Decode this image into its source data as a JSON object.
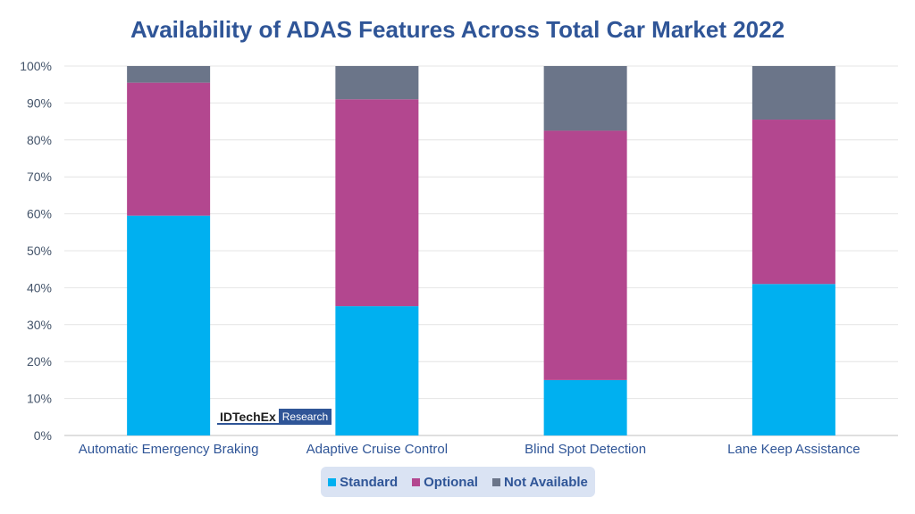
{
  "chart_data": {
    "type": "bar",
    "stacked": true,
    "title": "Availability of ADAS Features Across Total Car Market 2022",
    "categories": [
      "Automatic Emergency Braking",
      "Adaptive Cruise Control",
      "Blind Spot Detection",
      "Lane Keep Assistance"
    ],
    "series": [
      {
        "name": "Standard",
        "color": "#00b0f0",
        "values": [
          59.5,
          35,
          15,
          41
        ]
      },
      {
        "name": "Optional",
        "color": "#b3478f",
        "values": [
          36,
          56,
          67.5,
          44.5
        ]
      },
      {
        "name": "Not Available",
        "color": "#6b7589",
        "values": [
          4.5,
          9,
          17.5,
          14.5
        ]
      }
    ],
    "ylim": [
      0,
      100
    ],
    "yticks": [
      "0%",
      "10%",
      "20%",
      "30%",
      "40%",
      "50%",
      "60%",
      "70%",
      "80%",
      "90%",
      "100%"
    ],
    "grid": true,
    "legend_position": "bottom"
  },
  "logo": {
    "main": "IDTechEx",
    "sub": "Research"
  }
}
